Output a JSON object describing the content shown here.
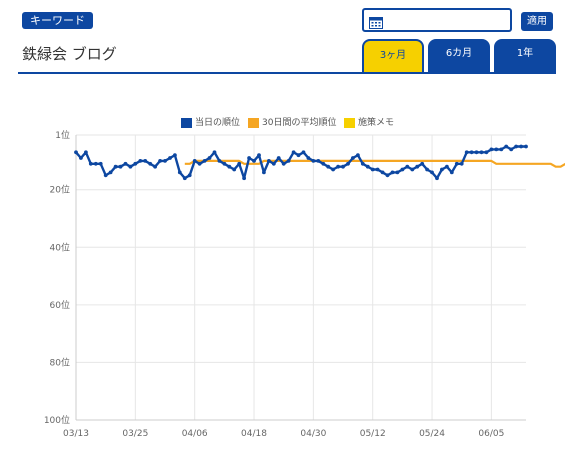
{
  "header": {
    "keyword_badge": "キーワード",
    "title": "鉄緑会 ブログ",
    "apply_label": "適用",
    "date_value": ""
  },
  "tabs": [
    {
      "label": "3ヶ月",
      "active": true
    },
    {
      "label": "6カ月",
      "active": false
    },
    {
      "label": "1年",
      "active": false
    }
  ],
  "icons": {
    "calendar": "calendar-icon"
  },
  "colors": {
    "brand": "#0d47a1",
    "accent": "#f6d000",
    "rank_line": "#0d47a1",
    "avg_line": "#f5a623",
    "memo": "#f6d000"
  },
  "chart_data": {
    "type": "line",
    "x_ticks": [
      "03/13",
      "03/25",
      "04/06",
      "04/18",
      "04/30",
      "05/12",
      "05/24",
      "06/05"
    ],
    "y_ticks": [
      "1位",
      "20位",
      "40位",
      "60位",
      "80位",
      "100位"
    ],
    "ylim": [
      1,
      100
    ],
    "y_inverted": true,
    "x_start": "03/13",
    "grid": true,
    "legend_position": "top",
    "series": [
      {
        "name": "当日の順位",
        "color": "#0d47a1",
        "values": [
          7,
          9,
          7,
          11,
          11,
          11,
          15,
          14,
          12,
          12,
          11,
          12,
          11,
          10,
          10,
          11,
          12,
          10,
          10,
          9,
          8,
          14,
          16,
          15,
          10,
          11,
          10,
          9,
          7,
          10,
          11,
          12,
          13,
          11,
          16,
          9,
          10,
          8,
          14,
          10,
          11,
          9,
          11,
          10,
          7,
          8,
          7,
          9,
          10,
          10,
          11,
          12,
          13,
          12,
          12,
          11,
          9,
          8,
          11,
          12,
          13,
          13,
          14,
          15,
          14,
          14,
          13,
          12,
          13,
          12,
          11,
          13,
          14,
          16,
          13,
          12,
          14,
          11,
          11,
          7,
          7,
          7,
          7,
          7,
          6,
          6,
          6,
          5,
          6,
          5,
          5,
          5
        ]
      },
      {
        "name": "30日間の平均順位",
        "color": "#f5a623",
        "x_offset": 22,
        "values": [
          11,
          11,
          10,
          10,
          10,
          10,
          10,
          10,
          10,
          10,
          10,
          10,
          11,
          11,
          11,
          11,
          10,
          10,
          10,
          10,
          10,
          10,
          10,
          10,
          10,
          10,
          10,
          10,
          10,
          10,
          10,
          10,
          10,
          10,
          10,
          10,
          10,
          10,
          10,
          10,
          10,
          10,
          10,
          10,
          10,
          10,
          10,
          10,
          10,
          10,
          10,
          10,
          10,
          10,
          10,
          10,
          10,
          10,
          10,
          10,
          10,
          10,
          10,
          11,
          11,
          11,
          11,
          11,
          11,
          11,
          11,
          11,
          11,
          11,
          11,
          12,
          12,
          11,
          11,
          11,
          11,
          11,
          11,
          10,
          10,
          10,
          10,
          10,
          10,
          9,
          9
        ]
      },
      {
        "name": "施策メモ",
        "color": "#f6d000",
        "values": []
      }
    ]
  }
}
